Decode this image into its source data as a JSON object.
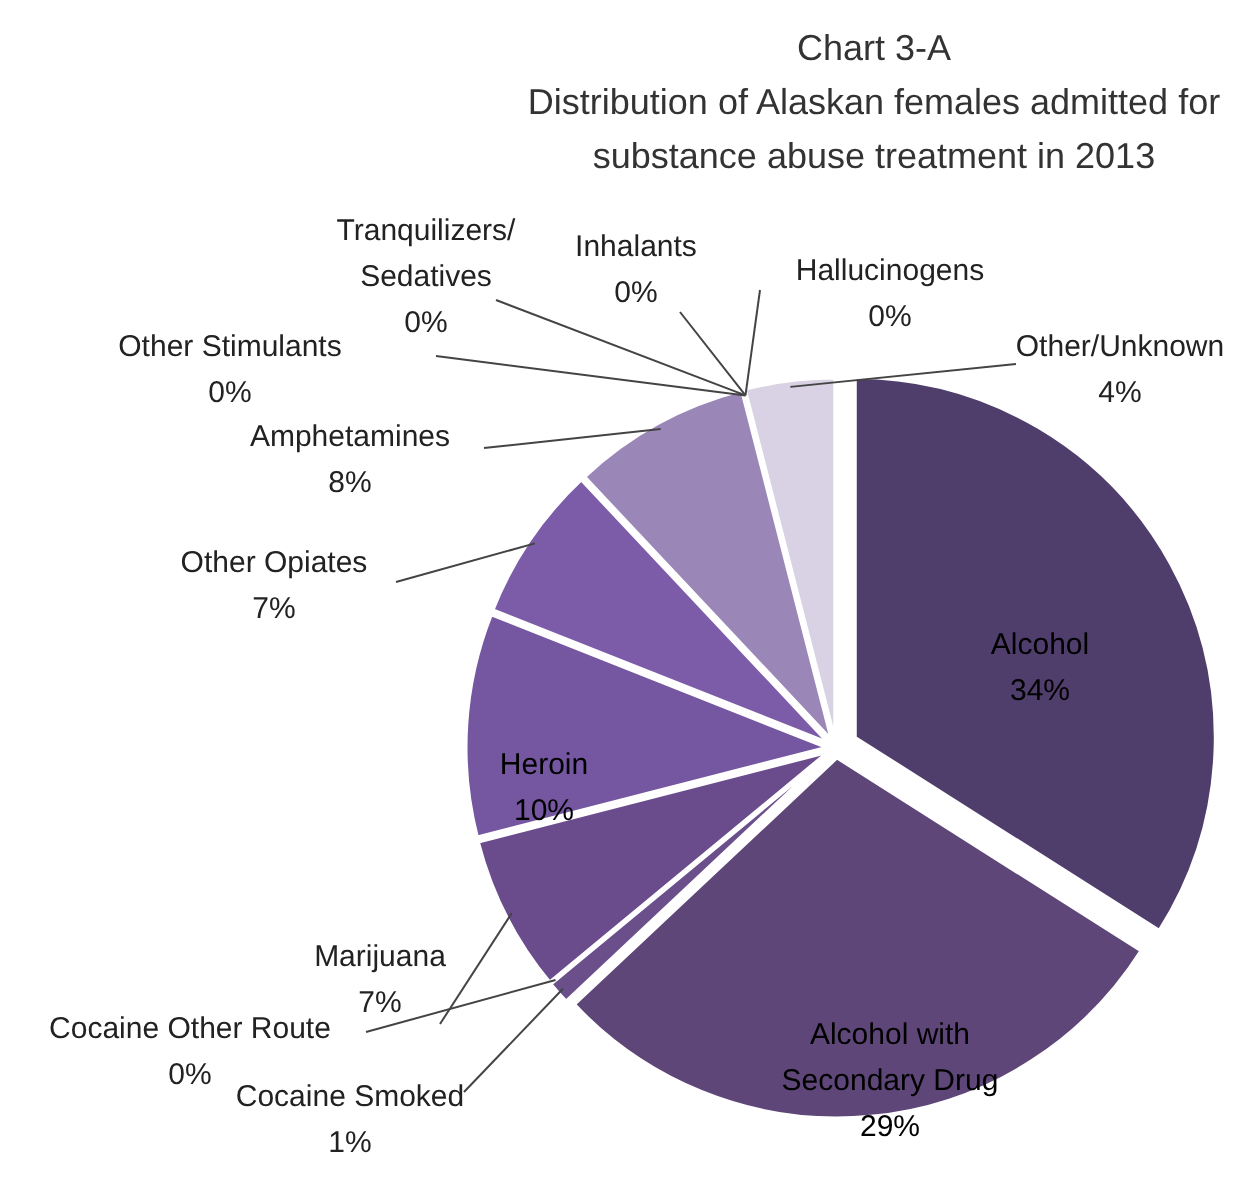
{
  "chart_data": {
    "type": "pie",
    "title": "Chart 3-A",
    "subtitle": "Distribution of Alaskan females admitted for substance abuse treatment in 2013",
    "categories": [
      "Alcohol",
      "Alcohol with Secondary Drug",
      "Cocaine Smoked",
      "Cocaine Other Route",
      "Marijuana",
      "Heroin",
      "Other Opiates",
      "Amphetamines",
      "Other Stimulants",
      "Tranquilizers/ Sedatives",
      "Inhalants",
      "Hallucinogens",
      "Other/Unknown"
    ],
    "values": [
      34,
      29,
      1,
      0,
      7,
      10,
      7,
      8,
      0,
      0,
      0,
      0,
      4
    ],
    "value_labels": [
      "34%",
      "29%",
      "1%",
      "0%",
      "7%",
      "10%",
      "7%",
      "8%",
      "0%",
      "0%",
      "0%",
      "0%",
      "4%"
    ],
    "colors": [
      "#4f3d6b",
      "#5e4678",
      "#6b4f8a",
      null,
      "#6a4c8c",
      "#7556a0",
      "#7c5ca8",
      "#9a87b8",
      null,
      null,
      null,
      null,
      "#d8d2e4"
    ]
  }
}
